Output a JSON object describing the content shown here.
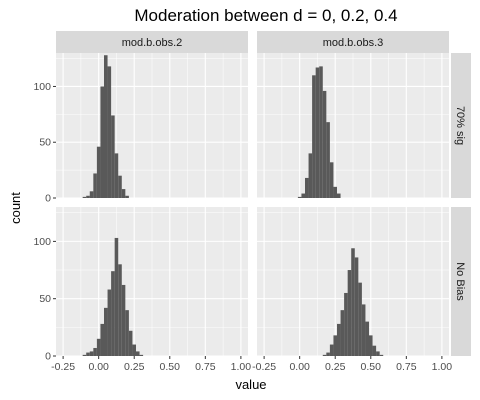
{
  "chart_data": {
    "type": "histogram-facet",
    "title": "Moderation between d = 0, 0.2, 0.4",
    "xlabel": "value",
    "ylabel": "count",
    "xlim": [
      -0.3,
      1.05
    ],
    "ylim": [
      0,
      130
    ],
    "x_ticks": [
      -0.25,
      0.0,
      0.25,
      0.5,
      0.75,
      1.0
    ],
    "x_tick_labels": [
      "-0.25",
      "0.00",
      "0.25",
      "0.50",
      "0.75",
      "1.00"
    ],
    "y_ticks": [
      0,
      50,
      100
    ],
    "y_tick_labels": [
      "0",
      "50",
      "100"
    ],
    "bin_width": 0.025,
    "bar_color": "#595959",
    "panel_bg": "#ebebeb",
    "strip_bg": "#d9d9d9",
    "grid_color": "#ffffff",
    "columns": [
      "mod.b.obs.2",
      "mod.b.obs.3"
    ],
    "rows": [
      "70% sig",
      "No Bias"
    ],
    "panels": [
      {
        "col": 0,
        "row": 0,
        "bins_start": -0.1125,
        "counts": [
          1,
          2,
          6,
          22,
          46,
          100,
          128,
          118,
          74,
          40,
          20,
          8,
          2
        ]
      },
      {
        "col": 1,
        "row": 0,
        "bins_start": -0.0125,
        "counts": [
          1,
          4,
          18,
          40,
          110,
          117,
          118,
          96,
          68,
          32,
          10,
          4
        ]
      },
      {
        "col": 0,
        "row": 1,
        "bins_start": -0.1125,
        "counts": [
          1,
          3,
          4,
          7,
          15,
          28,
          42,
          58,
          74,
          103,
          80,
          62,
          40,
          22,
          10,
          4,
          1
        ]
      },
      {
        "col": 1,
        "row": 1,
        "bins_start": 0.1625,
        "counts": [
          1,
          3,
          10,
          18,
          28,
          40,
          55,
          75,
          94,
          86,
          64,
          45,
          30,
          18,
          9,
          4,
          1
        ]
      }
    ]
  }
}
